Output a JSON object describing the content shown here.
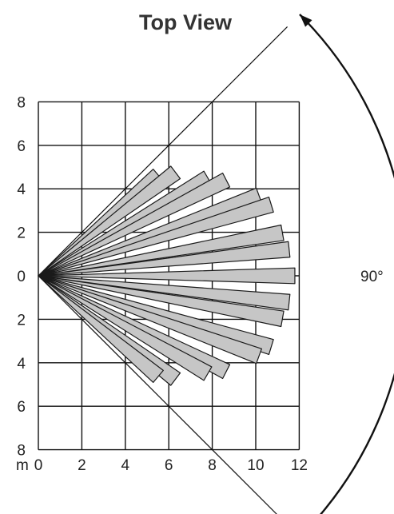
{
  "title": "Top View",
  "unit_label": "m",
  "x_axis": {
    "ticks": [
      "0",
      "2",
      "4",
      "6",
      "8",
      "10",
      "12"
    ],
    "range": [
      0,
      12
    ]
  },
  "y_axis": {
    "ticks": [
      "8",
      "6",
      "4",
      "2",
      "0",
      "2",
      "4",
      "6",
      "8"
    ],
    "range": [
      -8,
      8
    ]
  },
  "coverage_angle_label": "90°",
  "coverage_angle_deg": 90,
  "detection_zones": [
    {
      "angle_deg": 40,
      "length_m": 7.2
    },
    {
      "angle_deg": 37,
      "length_m": 7.9
    },
    {
      "angle_deg": 30,
      "length_m": 9.0
    },
    {
      "angle_deg": 27,
      "length_m": 9.7
    },
    {
      "angle_deg": 20,
      "length_m": 10.8
    },
    {
      "angle_deg": 17,
      "length_m": 11.2
    },
    {
      "angle_deg": 10,
      "length_m": 11.4
    },
    {
      "angle_deg": 6,
      "length_m": 11.6
    },
    {
      "angle_deg": 0,
      "length_m": 11.8
    },
    {
      "angle_deg": -6,
      "length_m": 11.6
    },
    {
      "angle_deg": -10,
      "length_m": 11.4
    },
    {
      "angle_deg": -17,
      "length_m": 11.2
    },
    {
      "angle_deg": -20,
      "length_m": 10.8
    },
    {
      "angle_deg": -27,
      "length_m": 9.7
    },
    {
      "angle_deg": -30,
      "length_m": 9.0
    },
    {
      "angle_deg": -37,
      "length_m": 7.9
    },
    {
      "angle_deg": -40,
      "length_m": 7.2
    }
  ]
}
